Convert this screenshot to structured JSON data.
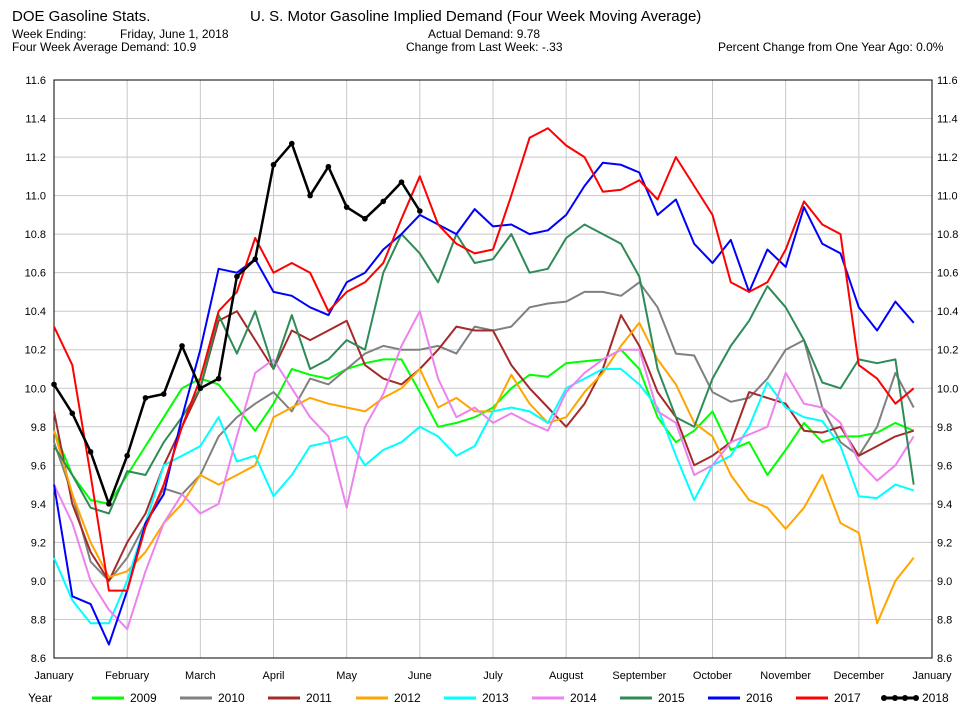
{
  "header": {
    "app_title": "DOE Gasoline Stats.",
    "chart_title": "U. S. Motor Gasoline Implied Demand (Four Week Moving Average)",
    "week_ending_label": "Week Ending:",
    "week_ending_value": "Friday, June 1, 2018",
    "avg_demand": "Four Week Average Demand: 10.9",
    "actual_demand": "Actual Demand: 9.78",
    "change": "Change from Last Week: -.33",
    "pct_change": "Percent Change from One Year Ago:  0.0%"
  },
  "legend": {
    "label": "Year"
  },
  "chart_data": {
    "type": "line",
    "ylim": [
      8.6,
      11.6
    ],
    "yticks": [
      8.6,
      8.8,
      9.0,
      9.2,
      9.4,
      9.6,
      9.8,
      10.0,
      10.2,
      10.4,
      10.6,
      10.8,
      11.0,
      11.2,
      11.4,
      11.6
    ],
    "ytick_labels": [
      "8.6",
      "8.8",
      "9.0",
      "9.2",
      "9.4",
      "9.6",
      "9.8",
      "10.0",
      "10.2",
      "10.4",
      "10.6",
      "10.8",
      "11.0",
      "11.2",
      "11.4",
      "11.6"
    ],
    "xlim": [
      0,
      12
    ],
    "xticks": [
      "January",
      "February",
      "March",
      "April",
      "May",
      "June",
      "July",
      "August",
      "September",
      "October",
      "November",
      "December",
      "January"
    ],
    "grid": true,
    "legend_position": "bottom",
    "series": [
      {
        "name": "2009",
        "color": "#00ff00",
        "markers": false,
        "x": [
          0,
          0.25,
          0.5,
          0.75,
          1.0,
          1.25,
          1.5,
          1.75,
          2.0,
          2.25,
          2.5,
          2.75,
          3.0,
          3.25,
          3.5,
          3.75,
          4.0,
          4.25,
          4.5,
          4.75,
          5.0,
          5.25,
          5.5,
          5.75,
          6.0,
          6.25,
          6.5,
          6.75,
          7.0,
          7.25,
          7.5,
          7.75,
          8.0,
          8.25,
          8.5,
          8.75,
          9.0,
          9.25,
          9.5,
          9.75,
          10.0,
          10.25,
          10.5,
          10.75,
          11.0,
          11.25,
          11.5,
          11.75
        ],
        "y": [
          9.78,
          9.55,
          9.42,
          9.4,
          9.55,
          9.7,
          9.85,
          10.0,
          10.05,
          10.02,
          9.9,
          9.78,
          9.92,
          10.1,
          10.07,
          10.05,
          10.1,
          10.13,
          10.15,
          10.15,
          9.98,
          9.8,
          9.82,
          9.85,
          9.9,
          10.0,
          10.07,
          10.06,
          10.13,
          10.14,
          10.15,
          10.2,
          10.1,
          9.85,
          9.72,
          9.78,
          9.88,
          9.68,
          9.72,
          9.55,
          9.68,
          9.82,
          9.72,
          9.75,
          9.75,
          9.77,
          9.82,
          9.78
        ]
      },
      {
        "name": "2010",
        "color": "#808080",
        "markers": false,
        "x": [
          0,
          0.25,
          0.5,
          0.75,
          1.0,
          1.25,
          1.5,
          1.75,
          2.0,
          2.25,
          2.5,
          2.75,
          3.0,
          3.25,
          3.5,
          3.75,
          4.0,
          4.25,
          4.5,
          4.75,
          5.0,
          5.25,
          5.5,
          5.75,
          6.0,
          6.25,
          6.5,
          6.75,
          7.0,
          7.25,
          7.5,
          7.75,
          8.0,
          8.25,
          8.5,
          8.75,
          9.0,
          9.25,
          9.5,
          9.75,
          10.0,
          10.25,
          10.5,
          10.75,
          11.0,
          11.25,
          11.5,
          11.75
        ],
        "y": [
          9.72,
          9.45,
          9.1,
          9.0,
          9.12,
          9.3,
          9.48,
          9.45,
          9.55,
          9.75,
          9.85,
          9.92,
          9.98,
          9.88,
          10.05,
          10.02,
          10.1,
          10.18,
          10.22,
          10.2,
          10.2,
          10.22,
          10.18,
          10.32,
          10.3,
          10.32,
          10.42,
          10.44,
          10.45,
          10.5,
          10.5,
          10.48,
          10.55,
          10.42,
          10.18,
          10.17,
          9.98,
          9.93,
          9.95,
          10.05,
          10.2,
          10.25,
          9.9,
          9.72,
          9.65,
          9.8,
          10.08,
          9.9
        ]
      },
      {
        "name": "2011",
        "color": "#a52a2a",
        "markers": false,
        "x": [
          0,
          0.25,
          0.5,
          0.75,
          1.0,
          1.25,
          1.5,
          1.75,
          2.0,
          2.25,
          2.5,
          2.75,
          3.0,
          3.25,
          3.5,
          3.75,
          4.0,
          4.25,
          4.5,
          4.75,
          5.0,
          5.25,
          5.5,
          5.75,
          6.0,
          6.25,
          6.5,
          6.75,
          7.0,
          7.25,
          7.5,
          7.75,
          8.0,
          8.25,
          8.5,
          8.75,
          9.0,
          9.25,
          9.5,
          9.75,
          10.0,
          10.25,
          10.5,
          10.75,
          11.0,
          11.25,
          11.5,
          11.75
        ],
        "y": [
          9.88,
          9.4,
          9.15,
          9.0,
          9.2,
          9.35,
          9.6,
          9.8,
          10.0,
          10.35,
          10.4,
          10.25,
          10.1,
          10.3,
          10.25,
          10.3,
          10.35,
          10.12,
          10.05,
          10.02,
          10.1,
          10.2,
          10.32,
          10.3,
          10.3,
          10.12,
          10.0,
          9.9,
          9.8,
          9.92,
          10.1,
          10.38,
          10.22,
          9.98,
          9.85,
          9.6,
          9.65,
          9.72,
          9.98,
          9.95,
          9.92,
          9.78,
          9.77,
          9.8,
          9.65,
          9.7,
          9.75,
          9.78
        ]
      },
      {
        "name": "2012",
        "color": "#ffa500",
        "markers": false,
        "x": [
          0,
          0.25,
          0.5,
          0.75,
          1.0,
          1.25,
          1.5,
          1.75,
          2.0,
          2.25,
          2.5,
          2.75,
          3.0,
          3.25,
          3.5,
          3.75,
          4.0,
          4.25,
          4.5,
          4.75,
          5.0,
          5.25,
          5.5,
          5.75,
          6.0,
          6.25,
          6.5,
          6.75,
          7.0,
          7.25,
          7.5,
          7.75,
          8.0,
          8.25,
          8.5,
          8.75,
          9.0,
          9.25,
          9.5,
          9.75,
          10.0,
          10.25,
          10.5,
          10.75,
          11.0,
          11.25,
          11.5,
          11.75
        ],
        "y": [
          9.78,
          9.45,
          9.2,
          9.02,
          9.05,
          9.15,
          9.3,
          9.4,
          9.55,
          9.5,
          9.55,
          9.6,
          9.85,
          9.9,
          9.95,
          9.92,
          9.9,
          9.88,
          9.95,
          10.0,
          10.1,
          9.9,
          9.95,
          9.88,
          9.88,
          10.07,
          9.92,
          9.82,
          9.85,
          9.98,
          10.08,
          10.22,
          10.34,
          10.15,
          10.02,
          9.82,
          9.75,
          9.55,
          9.42,
          9.38,
          9.27,
          9.38,
          9.55,
          9.3,
          9.25,
          8.78,
          9.0,
          9.12
        ]
      },
      {
        "name": "2013",
        "color": "#00ffff",
        "markers": false,
        "x": [
          0,
          0.25,
          0.5,
          0.75,
          1.0,
          1.25,
          1.5,
          1.75,
          2.0,
          2.25,
          2.5,
          2.75,
          3.0,
          3.25,
          3.5,
          3.75,
          4.0,
          4.25,
          4.5,
          4.75,
          5.0,
          5.25,
          5.5,
          5.75,
          6.0,
          6.25,
          6.5,
          6.75,
          7.0,
          7.25,
          7.5,
          7.75,
          8.0,
          8.25,
          8.5,
          8.75,
          9.0,
          9.25,
          9.5,
          9.75,
          10.0,
          10.25,
          10.5,
          10.75,
          11.0,
          11.25,
          11.5,
          11.75
        ],
        "y": [
          9.12,
          8.9,
          8.78,
          8.78,
          9.0,
          9.3,
          9.6,
          9.65,
          9.7,
          9.85,
          9.62,
          9.65,
          9.44,
          9.55,
          9.7,
          9.72,
          9.75,
          9.6,
          9.68,
          9.72,
          9.8,
          9.75,
          9.65,
          9.7,
          9.88,
          9.9,
          9.88,
          9.82,
          10.0,
          10.05,
          10.1,
          10.1,
          10.02,
          9.9,
          9.65,
          9.42,
          9.6,
          9.65,
          9.8,
          10.03,
          9.9,
          9.85,
          9.83,
          9.7,
          9.44,
          9.43,
          9.5,
          9.47
        ]
      },
      {
        "name": "2014",
        "color": "#ee82ee",
        "markers": false,
        "x": [
          0,
          0.25,
          0.5,
          0.75,
          1.0,
          1.25,
          1.5,
          1.75,
          2.0,
          2.25,
          2.5,
          2.75,
          3.0,
          3.25,
          3.5,
          3.75,
          4.0,
          4.25,
          4.5,
          4.75,
          5.0,
          5.25,
          5.5,
          5.75,
          6.0,
          6.25,
          6.5,
          6.75,
          7.0,
          7.25,
          7.5,
          7.75,
          8.0,
          8.25,
          8.5,
          8.75,
          9.0,
          9.25,
          9.5,
          9.75,
          10.0,
          10.25,
          10.5,
          10.75,
          11.0,
          11.25,
          11.5,
          11.75
        ],
        "y": [
          9.5,
          9.3,
          9.0,
          8.85,
          8.75,
          9.05,
          9.3,
          9.45,
          9.35,
          9.4,
          9.75,
          10.08,
          10.15,
          10.0,
          9.85,
          9.75,
          9.38,
          9.8,
          9.97,
          10.22,
          10.4,
          10.05,
          9.85,
          9.9,
          9.82,
          9.87,
          9.82,
          9.78,
          9.98,
          10.08,
          10.15,
          10.2,
          10.2,
          9.88,
          9.82,
          9.55,
          9.6,
          9.72,
          9.76,
          9.8,
          10.08,
          9.92,
          9.9,
          9.82,
          9.62,
          9.52,
          9.6,
          9.75
        ]
      },
      {
        "name": "2015",
        "color": "#2e8b57",
        "markers": false,
        "x": [
          0,
          0.25,
          0.5,
          0.75,
          1.0,
          1.25,
          1.5,
          1.75,
          2.0,
          2.25,
          2.5,
          2.75,
          3.0,
          3.25,
          3.5,
          3.75,
          4.0,
          4.25,
          4.5,
          4.75,
          5.0,
          5.25,
          5.5,
          5.75,
          6.0,
          6.25,
          6.5,
          6.75,
          7.0,
          7.25,
          7.5,
          7.75,
          8.0,
          8.25,
          8.5,
          8.75,
          9.0,
          9.25,
          9.5,
          9.75,
          10.0,
          10.25,
          10.5,
          10.75,
          11.0,
          11.25,
          11.5,
          11.75
        ],
        "y": [
          9.7,
          9.55,
          9.38,
          9.35,
          9.57,
          9.55,
          9.72,
          9.85,
          10.0,
          10.38,
          10.18,
          10.4,
          10.1,
          10.38,
          10.1,
          10.15,
          10.25,
          10.2,
          10.6,
          10.8,
          10.7,
          10.55,
          10.8,
          10.65,
          10.67,
          10.8,
          10.6,
          10.62,
          10.78,
          10.85,
          10.8,
          10.75,
          10.58,
          10.1,
          9.85,
          9.8,
          10.05,
          10.22,
          10.35,
          10.53,
          10.42,
          10.25,
          10.03,
          10.0,
          10.15,
          10.13,
          10.15,
          9.5
        ]
      },
      {
        "name": "2016",
        "color": "#0000ff",
        "markers": false,
        "x": [
          0,
          0.25,
          0.5,
          0.75,
          1.0,
          1.25,
          1.5,
          1.75,
          2.0,
          2.25,
          2.5,
          2.75,
          3.0,
          3.25,
          3.5,
          3.75,
          4.0,
          4.25,
          4.5,
          4.75,
          5.0,
          5.25,
          5.5,
          5.75,
          6.0,
          6.25,
          6.5,
          6.75,
          7.0,
          7.25,
          7.5,
          7.75,
          8.0,
          8.25,
          8.5,
          8.75,
          9.0,
          9.25,
          9.5,
          9.75,
          10.0,
          10.25,
          10.5,
          10.75,
          11.0,
          11.25,
          11.5,
          11.75
        ],
        "y": [
          9.5,
          8.92,
          8.88,
          8.67,
          8.95,
          9.3,
          9.45,
          9.85,
          10.2,
          10.62,
          10.6,
          10.67,
          10.5,
          10.48,
          10.42,
          10.38,
          10.55,
          10.6,
          10.72,
          10.8,
          10.9,
          10.85,
          10.8,
          10.93,
          10.84,
          10.85,
          10.8,
          10.82,
          10.9,
          11.05,
          11.17,
          11.16,
          11.12,
          10.9,
          10.98,
          10.75,
          10.65,
          10.77,
          10.5,
          10.72,
          10.63,
          10.94,
          10.75,
          10.7,
          10.42,
          10.3,
          10.45,
          10.34
        ]
      },
      {
        "name": "2017",
        "color": "#ff0000",
        "markers": false,
        "x": [
          0,
          0.25,
          0.5,
          0.75,
          1.0,
          1.25,
          1.5,
          1.75,
          2.0,
          2.25,
          2.5,
          2.75,
          3.0,
          3.25,
          3.5,
          3.75,
          4.0,
          4.25,
          4.5,
          4.75,
          5.0,
          5.25,
          5.5,
          5.75,
          6.0,
          6.25,
          6.5,
          6.75,
          7.0,
          7.25,
          7.5,
          7.75,
          8.0,
          8.25,
          8.5,
          8.75,
          9.0,
          9.25,
          9.5,
          9.75,
          10.0,
          10.25,
          10.5,
          10.75,
          11.0,
          11.25,
          11.5,
          11.75
        ],
        "y": [
          10.32,
          10.12,
          9.55,
          8.95,
          8.95,
          9.28,
          9.5,
          9.8,
          10.05,
          10.4,
          10.5,
          10.78,
          10.6,
          10.65,
          10.6,
          10.4,
          10.5,
          10.55,
          10.65,
          10.88,
          11.1,
          10.85,
          10.75,
          10.7,
          10.72,
          11.0,
          11.3,
          11.35,
          11.26,
          11.2,
          11.02,
          11.03,
          11.08,
          10.98,
          11.2,
          11.05,
          10.9,
          10.55,
          10.5,
          10.55,
          10.72,
          10.97,
          10.85,
          10.8,
          10.12,
          10.05,
          9.92,
          10.0
        ]
      },
      {
        "name": "2018",
        "color": "#000000",
        "markers": true,
        "x": [
          0,
          0.25,
          0.5,
          0.75,
          1.0,
          1.25,
          1.5,
          1.75,
          2.0,
          2.25,
          2.5,
          2.75,
          3.0,
          3.25,
          3.5,
          3.75,
          4.0,
          4.25,
          4.5,
          4.75,
          5.0
        ],
        "y": [
          10.02,
          9.87,
          9.67,
          9.4,
          9.65,
          9.95,
          9.97,
          10.22,
          10.0,
          10.05,
          10.58,
          10.67,
          11.16,
          11.27,
          11.0,
          11.15,
          10.94,
          10.88,
          10.97,
          11.07,
          10.92
        ]
      }
    ]
  }
}
